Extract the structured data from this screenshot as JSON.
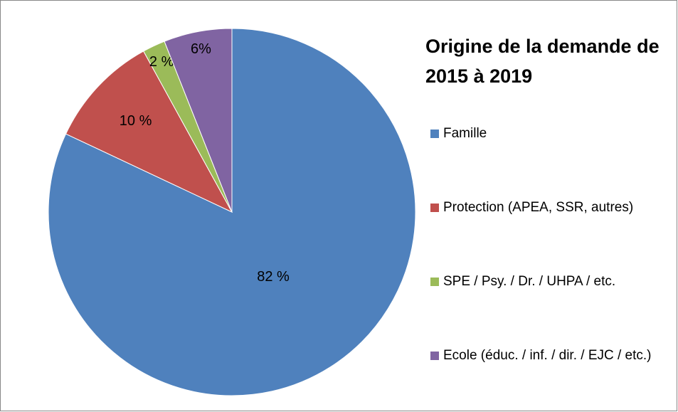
{
  "chart_data": {
    "type": "pie",
    "title": "Origine de la demande de 2015 à 2019",
    "categories": [
      "Famille",
      "Protection (APEA, SSR, autres)",
      "SPE / Psy. / Dr. / UHPA / etc.",
      "Ecole (éduc. / inf. / dir. / EJC / etc.)"
    ],
    "values": [
      82,
      10,
      2,
      6
    ],
    "value_labels": [
      "82 %",
      "10 %",
      "2 %",
      "6%"
    ],
    "colors": [
      "#4f81bd",
      "#c0504d",
      "#9bbb59",
      "#8064a2"
    ],
    "legend": "right"
  }
}
